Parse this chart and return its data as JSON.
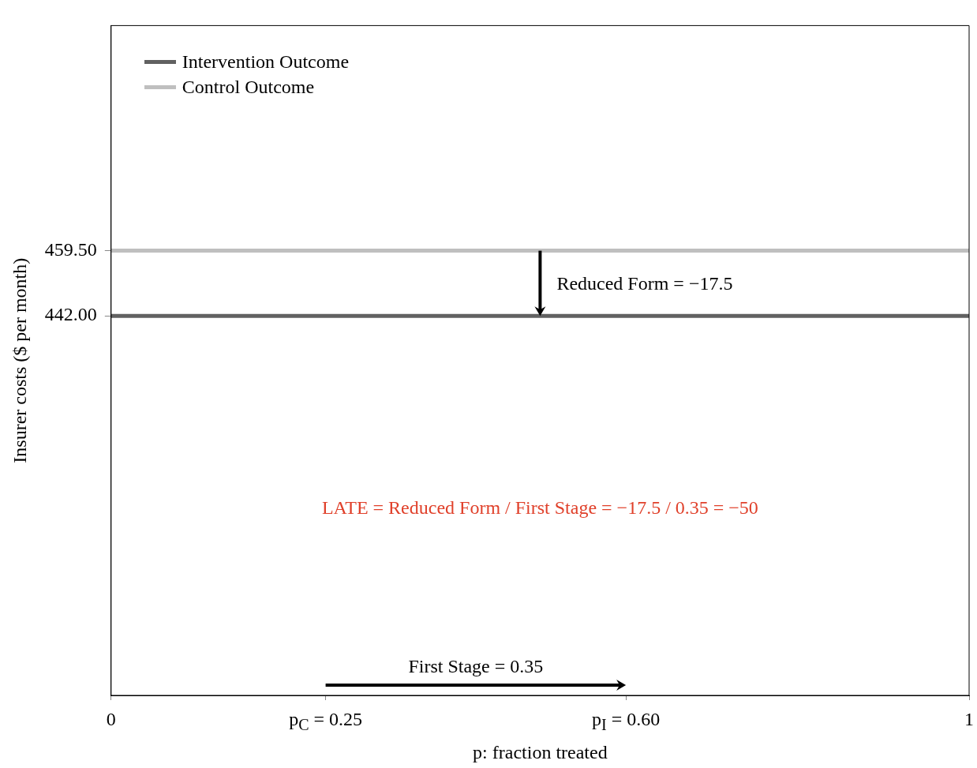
{
  "chart_data": {
    "type": "line",
    "xlabel": "p: fraction treated",
    "ylabel": "Insurer costs ($ per month)",
    "xlim": [
      0,
      1
    ],
    "xticks": [
      0,
      {
        "value": 0.25,
        "label": "p$_{C}$ = 0.25"
      },
      {
        "value": 0.6,
        "label": "p$_{I}$ = 0.60"
      },
      1
    ],
    "ylim": [
      340,
      520
    ],
    "yticks": [
      {
        "value": 442,
        "label": "442.00"
      },
      {
        "value": 459.5,
        "label": "459.50"
      }
    ],
    "x": [
      0,
      1
    ],
    "series": [
      {
        "name": "Intervention Outcome",
        "color": "#616161",
        "values": [
          442,
          442
        ]
      },
      {
        "name": "Control Outcome",
        "color": "#bfbfbf",
        "values": [
          459.5,
          459.5
        ]
      }
    ],
    "annotations": [
      "Reduced Form = −17.5",
      "First Stage = 0.35",
      "LATE = Reduced Form / First Stage = −17.5 / 0.35 = −50"
    ],
    "grid": false,
    "legend": "top left",
    "marker": "none",
    "line_style": "solid"
  }
}
